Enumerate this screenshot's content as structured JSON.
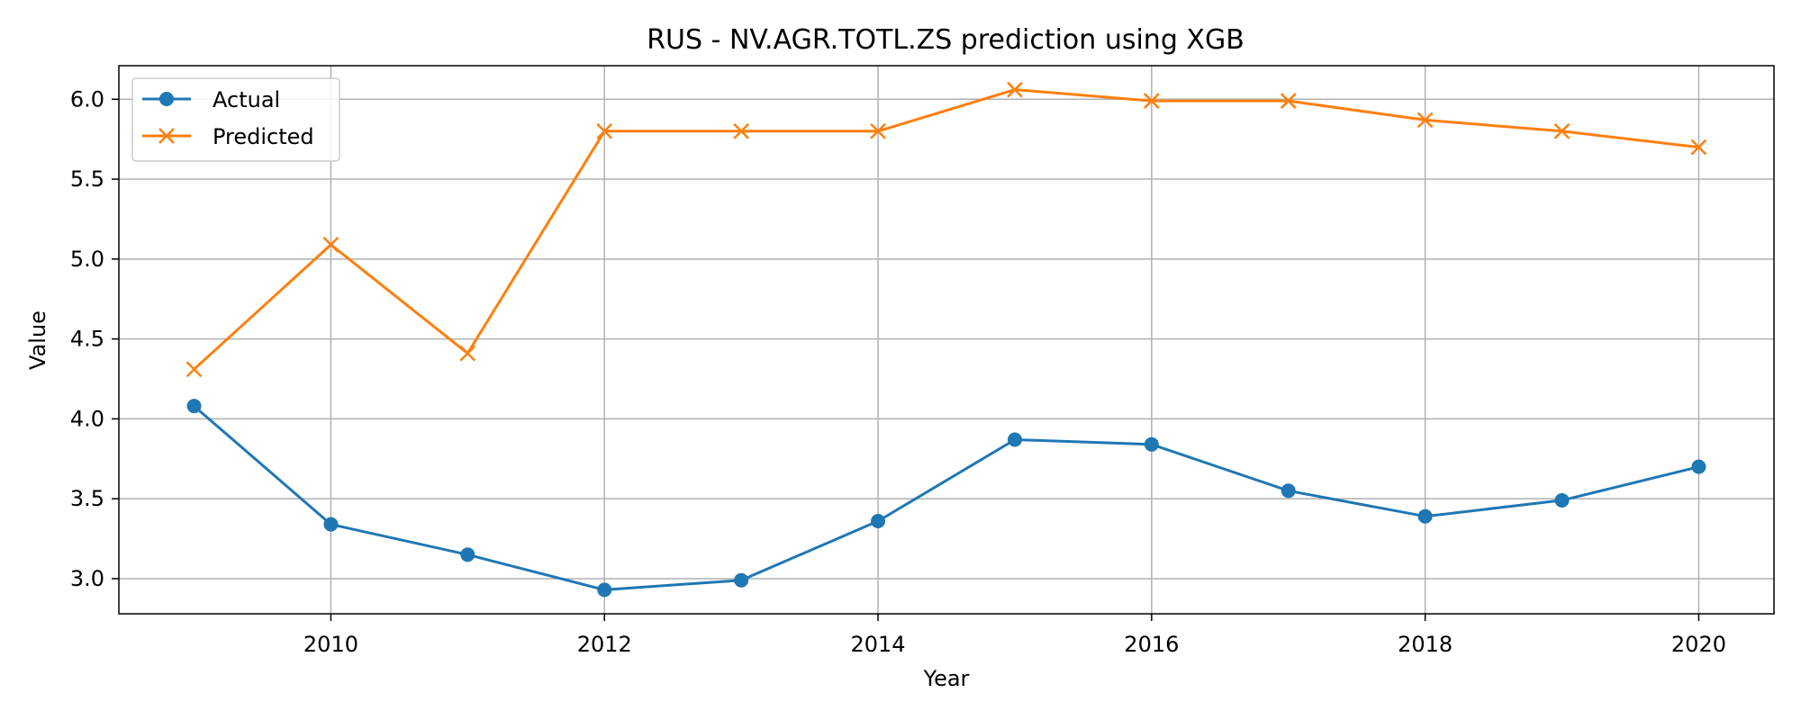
{
  "chart_data": {
    "type": "line",
    "title": "RUS - NV.AGR.TOTL.ZS prediction using XGB",
    "xlabel": "Year",
    "ylabel": "Value",
    "x": [
      2009,
      2010,
      2011,
      2012,
      2013,
      2014,
      2015,
      2016,
      2017,
      2018,
      2019,
      2020
    ],
    "xlim": [
      2008.45,
      2020.55
    ],
    "ylim": [
      2.78,
      6.21
    ],
    "xticks": [
      2010,
      2012,
      2014,
      2016,
      2018,
      2020
    ],
    "xtick_labels": [
      "2010",
      "2012",
      "2014",
      "2016",
      "2018",
      "2020"
    ],
    "yticks": [
      3.0,
      3.5,
      4.0,
      4.5,
      5.0,
      5.5,
      6.0
    ],
    "ytick_labels": [
      "3.0",
      "3.5",
      "4.0",
      "4.5",
      "5.0",
      "5.5",
      "6.0"
    ],
    "grid": true,
    "legend_position": "top-left",
    "series": [
      {
        "name": "Actual",
        "color": "#1f77b4",
        "marker": "circle",
        "values": [
          4.08,
          3.34,
          3.15,
          2.93,
          2.99,
          3.36,
          3.87,
          3.84,
          3.55,
          3.39,
          3.49,
          3.7
        ]
      },
      {
        "name": "Predicted",
        "color": "#ff7f0e",
        "marker": "x",
        "values": [
          4.31,
          5.09,
          4.41,
          5.8,
          5.8,
          5.8,
          6.06,
          5.99,
          5.99,
          5.87,
          5.8,
          5.7
        ]
      }
    ]
  }
}
